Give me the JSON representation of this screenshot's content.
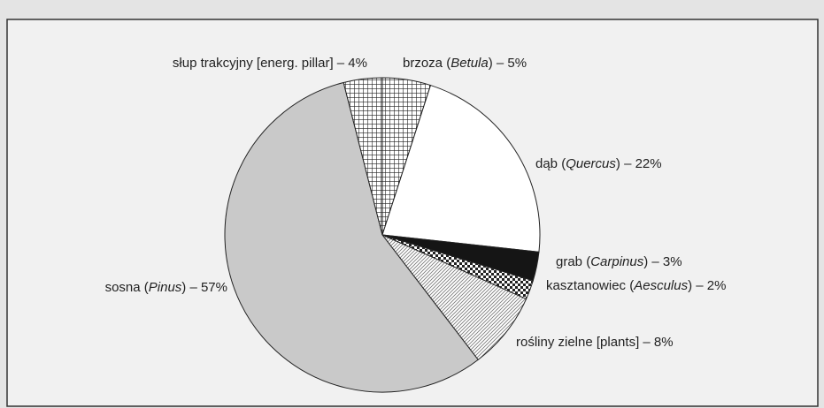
{
  "chart_data": {
    "type": "pie",
    "categories": [
      "brzoza (Betula) – 5%",
      "dąb (Quercus) – 22%",
      "grab (Carpinus) – 3%",
      "kasztanowiec (Aesculus) – 2%",
      "rośliny zielne  [plants] – 8%",
      "sosna (Pinus) – 57%",
      "słup trakcyjny  [energ. pillar] – 4%"
    ],
    "values": [
      5,
      22,
      3,
      2,
      8,
      57,
      4
    ]
  }
}
